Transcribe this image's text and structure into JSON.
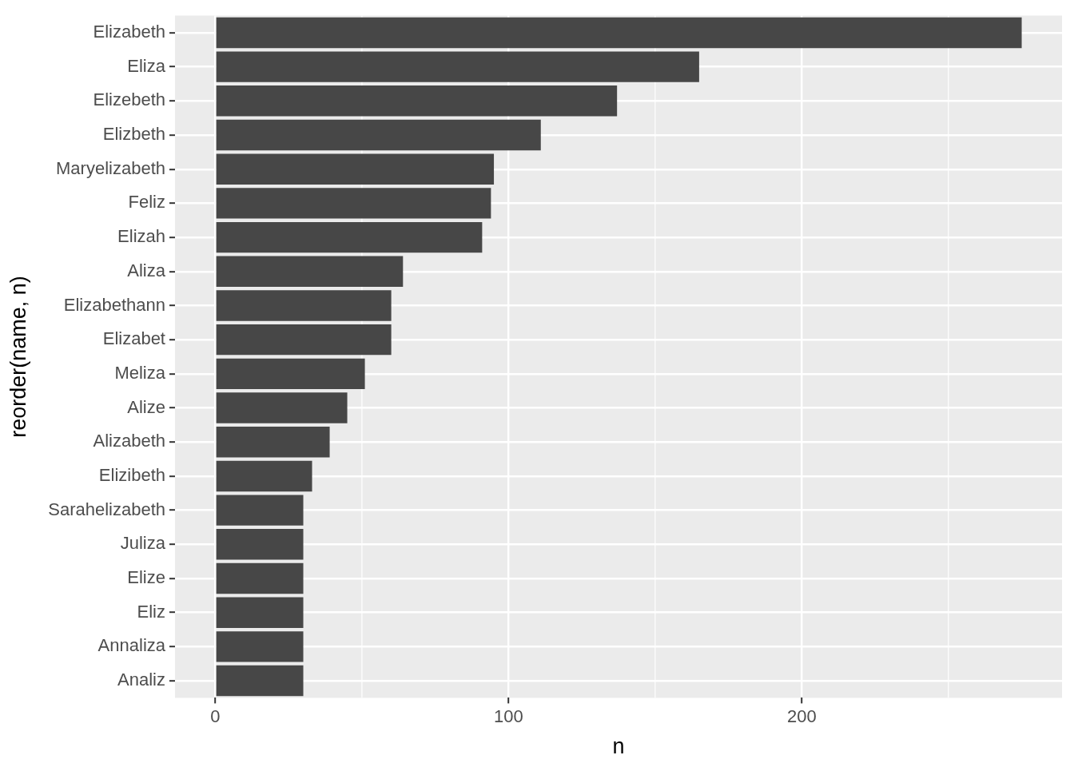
{
  "chart_data": {
    "type": "bar",
    "orientation": "horizontal",
    "categories": [
      "Elizabeth",
      "Eliza",
      "Elizebeth",
      "Elizbeth",
      "Maryelizabeth",
      "Feliz",
      "Elizah",
      "Aliza",
      "Elizabethann",
      "Elizabet",
      "Meliza",
      "Alize",
      "Alizabeth",
      "Elizibeth",
      "Sarahelizabeth",
      "Juliza",
      "Elize",
      "Eliz",
      "Annaliza",
      "Analiz"
    ],
    "values": [
      275,
      165,
      137,
      111,
      95,
      94,
      91,
      64,
      60,
      60,
      51,
      45,
      39,
      33,
      30,
      30,
      30,
      30,
      30,
      30
    ],
    "color": "#474747",
    "xlabel": "n",
    "ylabel": "reorder(name, n)",
    "xlim": [
      -13.75,
      288.75
    ],
    "xticks": [
      0,
      100,
      200
    ],
    "grid": true
  }
}
